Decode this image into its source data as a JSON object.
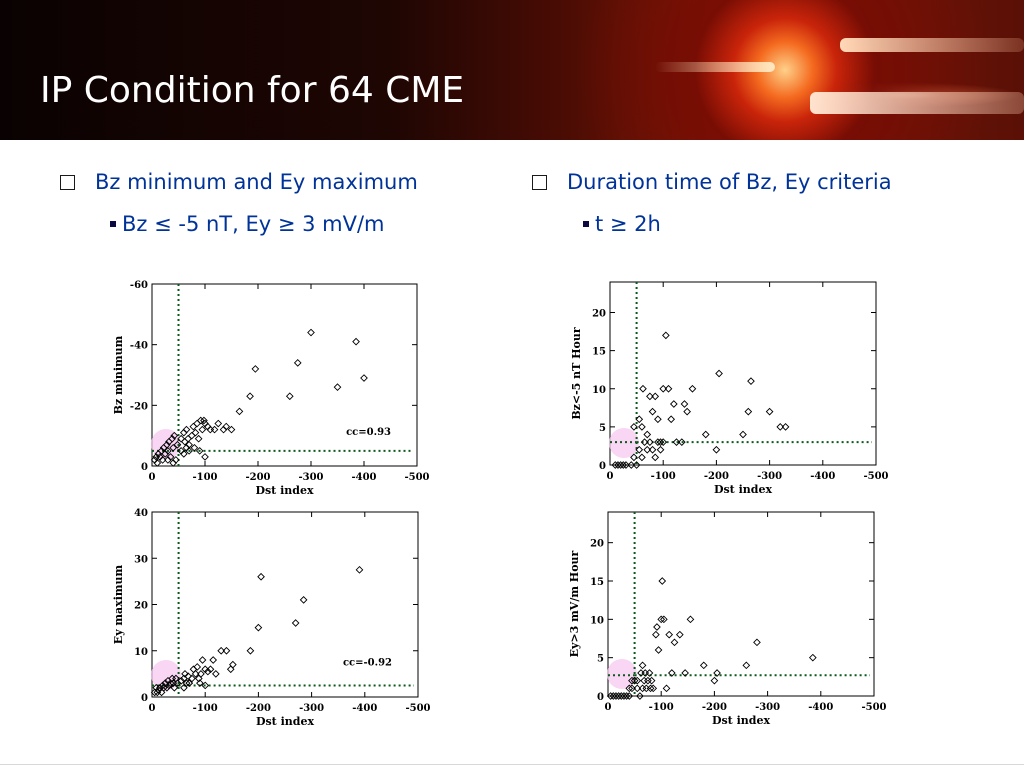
{
  "slide": {
    "title": "IP Condition for 64 CME",
    "left": {
      "heading": "Bz minimum and Ey maximum",
      "sub": "Bz ≤ -5 nT, Ey ≥ 3 mV/m"
    },
    "right": {
      "heading": "Duration time of Bz, Ey criteria",
      "sub": "t ≥ 2h"
    }
  },
  "chart_data": [
    {
      "type": "scatter",
      "xlabel": "Dst index",
      "ylabel": "Bz minimum",
      "xlim": [
        0,
        -500
      ],
      "ylim": [
        0,
        -60
      ],
      "xticks": [
        "0",
        "-100",
        "-200",
        "-300",
        "-400",
        "-500"
      ],
      "yticks": [
        "0",
        "-20",
        "-40",
        "-60"
      ],
      "yticks_values": [
        0,
        -20,
        -40,
        -60
      ],
      "annotation": "cc=0.93",
      "threshold_x": -50,
      "threshold_y": -5,
      "points": [
        [
          -5,
          -2
        ],
        [
          -8,
          -3
        ],
        [
          -10,
          -1
        ],
        [
          -12,
          -4
        ],
        [
          -15,
          -3
        ],
        [
          -18,
          -5
        ],
        [
          -20,
          -2
        ],
        [
          -22,
          -6
        ],
        [
          -25,
          -4
        ],
        [
          -28,
          -7
        ],
        [
          -30,
          -5
        ],
        [
          -32,
          -8
        ],
        [
          -35,
          -3
        ],
        [
          -38,
          -9
        ],
        [
          -40,
          -6
        ],
        [
          -42,
          -10
        ],
        [
          -45,
          -2
        ],
        [
          -48,
          -7
        ],
        [
          -55,
          -9
        ],
        [
          -60,
          -11
        ],
        [
          -62,
          -8
        ],
        [
          -65,
          -12
        ],
        [
          -68,
          -9
        ],
        [
          -70,
          -7
        ],
        [
          -75,
          -10
        ],
        [
          -78,
          -13
        ],
        [
          -82,
          -11
        ],
        [
          -85,
          -14
        ],
        [
          -88,
          -9
        ],
        [
          -92,
          -15
        ],
        [
          -95,
          -12
        ],
        [
          -98,
          -15
        ],
        [
          -100,
          -14
        ],
        [
          -105,
          -13
        ],
        [
          -110,
          -12
        ],
        [
          -118,
          -12
        ],
        [
          -125,
          -14
        ],
        [
          -135,
          -12
        ],
        [
          -140,
          -13
        ],
        [
          -150,
          -12
        ],
        [
          -165,
          -18
        ],
        [
          -185,
          -23
        ],
        [
          -195,
          -32
        ],
        [
          -260,
          -23
        ],
        [
          -275,
          -34
        ],
        [
          -300,
          -44
        ],
        [
          -350,
          -26
        ],
        [
          -385,
          -41
        ],
        [
          -400,
          -29
        ],
        [
          -55,
          -5
        ],
        [
          -60,
          -4
        ],
        [
          -65,
          -6
        ],
        [
          -70,
          -5
        ],
        [
          -80,
          -6
        ],
        [
          -90,
          -5
        ],
        [
          -100,
          -3
        ],
        [
          -30,
          -2
        ],
        [
          -40,
          -1
        ]
      ],
      "legend_region": "pink circle highlight near origin"
    },
    {
      "type": "scatter",
      "xlabel": "Dst index",
      "ylabel": "Bz<-5 nT Hour",
      "xlim": [
        0,
        -500
      ],
      "ylim": [
        0,
        24
      ],
      "xticks": [
        "0",
        "-100",
        "-200",
        "-300",
        "-400",
        "-500"
      ],
      "yticks": [
        "0",
        "5",
        "10",
        "15",
        "20"
      ],
      "yticks_values": [
        0,
        5,
        10,
        15,
        20
      ],
      "threshold_x": -50,
      "threshold_y": 3,
      "points": [
        [
          -10,
          0
        ],
        [
          -15,
          0
        ],
        [
          -20,
          0
        ],
        [
          -25,
          0
        ],
        [
          -30,
          0
        ],
        [
          -40,
          0
        ],
        [
          -45,
          1
        ],
        [
          -50,
          0
        ],
        [
          -55,
          2
        ],
        [
          -60,
          1
        ],
        [
          -65,
          3
        ],
        [
          -70,
          2
        ],
        [
          -75,
          3
        ],
        [
          -80,
          2
        ],
        [
          -85,
          1
        ],
        [
          -90,
          3
        ],
        [
          -95,
          2
        ],
        [
          -100,
          3
        ],
        [
          -60,
          5
        ],
        [
          -62,
          10
        ],
        [
          -70,
          4
        ],
        [
          -75,
          9
        ],
        [
          -80,
          7
        ],
        [
          -85,
          9
        ],
        [
          -90,
          6
        ],
        [
          -95,
          3
        ],
        [
          -100,
          10
        ],
        [
          -105,
          17
        ],
        [
          -110,
          10
        ],
        [
          -115,
          6
        ],
        [
          -120,
          8
        ],
        [
          -125,
          3
        ],
        [
          -135,
          3
        ],
        [
          -140,
          8
        ],
        [
          -145,
          7
        ],
        [
          -155,
          10
        ],
        [
          -180,
          4
        ],
        [
          -200,
          2
        ],
        [
          -205,
          12
        ],
        [
          -250,
          4
        ],
        [
          -260,
          7
        ],
        [
          -265,
          11
        ],
        [
          -300,
          7
        ],
        [
          -320,
          5
        ],
        [
          -330,
          5
        ],
        [
          -45,
          5
        ],
        [
          -55,
          6
        ]
      ]
    },
    {
      "type": "scatter",
      "xlabel": "Dst index",
      "ylabel": "Ey maximum",
      "xlim": [
        0,
        -500
      ],
      "ylim": [
        0,
        40
      ],
      "xticks": [
        "0",
        "-100",
        "-200",
        "-300",
        "-400",
        "-500"
      ],
      "yticks": [
        "0",
        "10",
        "20",
        "30",
        "40"
      ],
      "yticks_values": [
        0,
        10,
        20,
        30,
        40
      ],
      "annotation": "cc=-0.92",
      "threshold_x": -50,
      "threshold_y": 2.5,
      "points": [
        [
          -5,
          1
        ],
        [
          -8,
          2
        ],
        [
          -10,
          1
        ],
        [
          -12,
          1.5
        ],
        [
          -15,
          2
        ],
        [
          -18,
          1
        ],
        [
          -20,
          2.5
        ],
        [
          -22,
          2
        ],
        [
          -25,
          3
        ],
        [
          -28,
          2
        ],
        [
          -30,
          3.5
        ],
        [
          -32,
          2.5
        ],
        [
          -35,
          3
        ],
        [
          -38,
          4
        ],
        [
          -40,
          3
        ],
        [
          -42,
          2
        ],
        [
          -45,
          4
        ],
        [
          -48,
          3
        ],
        [
          -55,
          3.5
        ],
        [
          -60,
          4
        ],
        [
          -62,
          5
        ],
        [
          -65,
          3
        ],
        [
          -68,
          4.5
        ],
        [
          -70,
          3
        ],
        [
          -75,
          4
        ],
        [
          -78,
          6
        ],
        [
          -82,
          5
        ],
        [
          -85,
          6.5
        ],
        [
          -88,
          4
        ],
        [
          -92,
          5
        ],
        [
          -95,
          8
        ],
        [
          -100,
          6
        ],
        [
          -105,
          5.5
        ],
        [
          -110,
          6
        ],
        [
          -115,
          8
        ],
        [
          -120,
          5
        ],
        [
          -130,
          10
        ],
        [
          -140,
          10
        ],
        [
          -148,
          6
        ],
        [
          -152,
          7
        ],
        [
          -185,
          10
        ],
        [
          -200,
          15
        ],
        [
          -205,
          26
        ],
        [
          -270,
          16
        ],
        [
          -285,
          21
        ],
        [
          -390,
          27.5
        ],
        [
          -60,
          2
        ],
        [
          -70,
          3
        ],
        [
          -90,
          3
        ],
        [
          -100,
          2.5
        ]
      ]
    },
    {
      "type": "scatter",
      "xlabel": "Dst index",
      "ylabel": "Ey>3 mV/m Hour",
      "xlim": [
        0,
        -500
      ],
      "ylim": [
        0,
        24
      ],
      "xticks": [
        "0",
        "-100",
        "-200",
        "-300",
        "-400",
        "-500"
      ],
      "yticks": [
        "0",
        "5",
        "10",
        "15",
        "20"
      ],
      "yticks_values": [
        0,
        5,
        10,
        15,
        20
      ],
      "threshold_x": -50,
      "threshold_y": 2.7,
      "points": [
        [
          -5,
          0
        ],
        [
          -10,
          0
        ],
        [
          -15,
          0
        ],
        [
          -20,
          0
        ],
        [
          -25,
          0
        ],
        [
          -30,
          0
        ],
        [
          -35,
          0
        ],
        [
          -40,
          0
        ],
        [
          -40,
          1
        ],
        [
          -45,
          1
        ],
        [
          -50,
          2
        ],
        [
          -55,
          1
        ],
        [
          -60,
          0
        ],
        [
          -62,
          3
        ],
        [
          -65,
          4
        ],
        [
          -68,
          2
        ],
        [
          -70,
          3
        ],
        [
          -72,
          1
        ],
        [
          -75,
          2
        ],
        [
          -78,
          3
        ],
        [
          -80,
          1
        ],
        [
          -82,
          2
        ],
        [
          -85,
          1
        ],
        [
          -90,
          8
        ],
        [
          -92,
          9
        ],
        [
          -95,
          6
        ],
        [
          -100,
          10
        ],
        [
          -102,
          15
        ],
        [
          -105,
          10
        ],
        [
          -110,
          1
        ],
        [
          -115,
          8
        ],
        [
          -120,
          3
        ],
        [
          -125,
          7
        ],
        [
          -135,
          8
        ],
        [
          -145,
          3
        ],
        [
          -155,
          10
        ],
        [
          -180,
          4
        ],
        [
          -200,
          2
        ],
        [
          -205,
          3
        ],
        [
          -260,
          4
        ],
        [
          -280,
          7
        ],
        [
          -385,
          5
        ],
        [
          -45,
          2
        ],
        [
          -55,
          2
        ],
        [
          -65,
          1
        ]
      ]
    }
  ]
}
